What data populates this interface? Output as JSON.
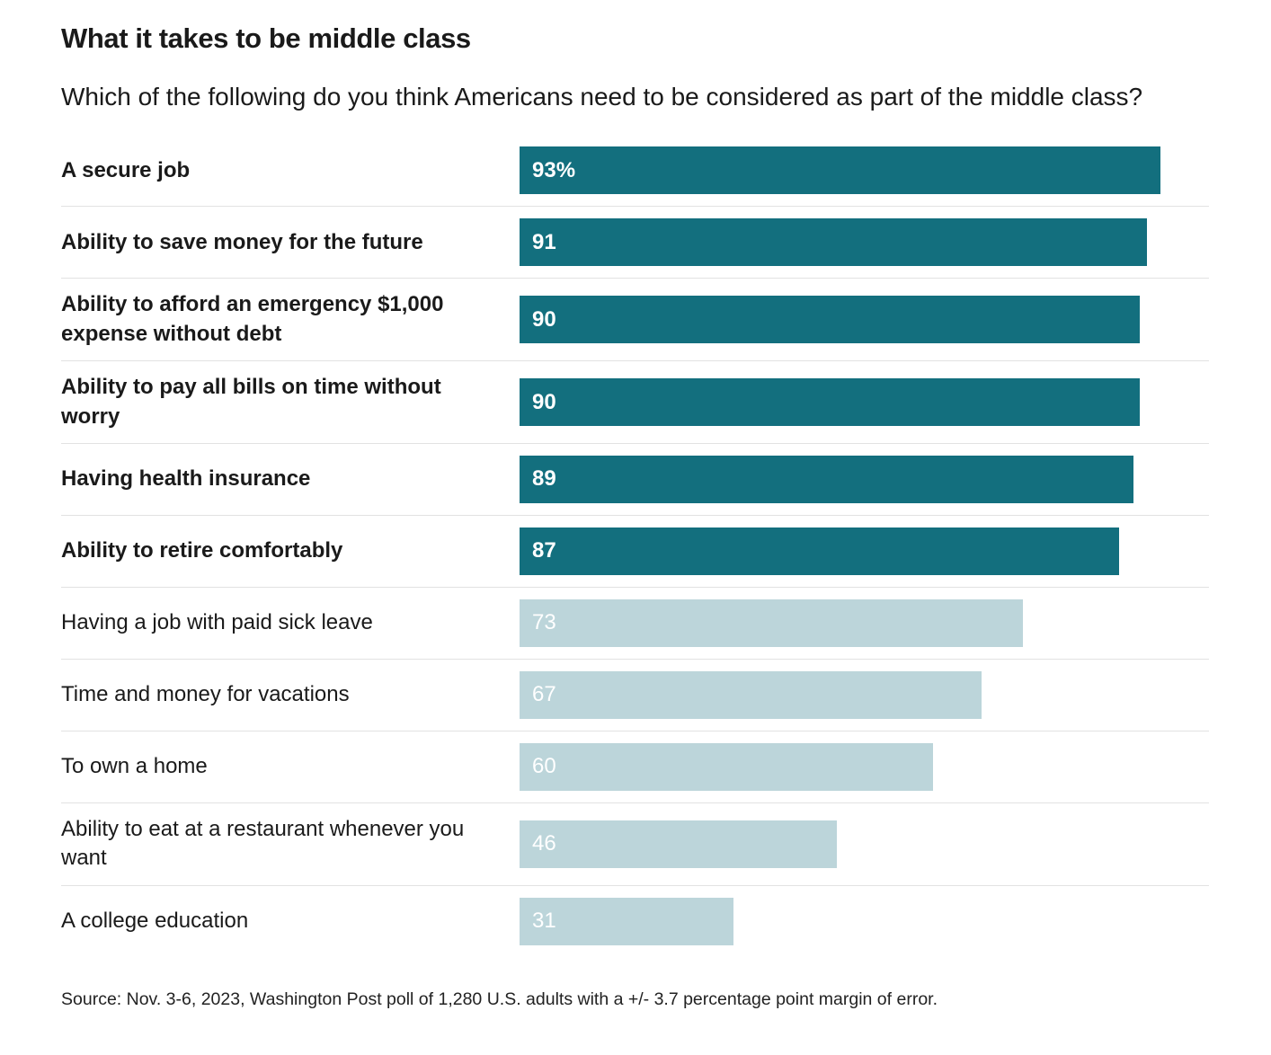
{
  "chart_data": {
    "type": "bar",
    "orientation": "horizontal",
    "title": "What it takes to be middle class",
    "subtitle": "Which of the following do you think Americans need to be considered as part of the middle class?",
    "source": "Source: Nov. 3-6, 2023, Washington Post poll of 1,280 U.S. adults with a +/- 3.7 percentage point margin of error.",
    "xlim": [
      0,
      100
    ],
    "grid": false,
    "legend": "none",
    "colors": {
      "emphasis_bar": "#136f7e",
      "muted_bar": "#bcd5da",
      "value_text": "#ffffff",
      "divider": "#e2e2e2",
      "text": "#1a1a1a"
    },
    "bars": [
      {
        "label": "A secure job",
        "value": 93,
        "display": "93%",
        "emphasis": true
      },
      {
        "label": "Ability to save money for the future",
        "value": 91,
        "display": "91",
        "emphasis": true
      },
      {
        "label": "Ability to afford an emergency $1,000 expense without debt",
        "value": 90,
        "display": "90",
        "emphasis": true
      },
      {
        "label": "Ability to pay all bills on time without worry",
        "value": 90,
        "display": "90",
        "emphasis": true
      },
      {
        "label": "Having health insurance",
        "value": 89,
        "display": "89",
        "emphasis": true
      },
      {
        "label": "Ability to retire comfortably",
        "value": 87,
        "display": "87",
        "emphasis": true
      },
      {
        "label": "Having a job with paid sick leave",
        "value": 73,
        "display": "73",
        "emphasis": false
      },
      {
        "label": "Time and money for vacations",
        "value": 67,
        "display": "67",
        "emphasis": false
      },
      {
        "label": "To own a home",
        "value": 60,
        "display": "60",
        "emphasis": false
      },
      {
        "label": "Ability to eat at a restaurant whenever you want",
        "value": 46,
        "display": "46",
        "emphasis": false
      },
      {
        "label": "A college education",
        "value": 31,
        "display": "31",
        "emphasis": false
      }
    ]
  }
}
